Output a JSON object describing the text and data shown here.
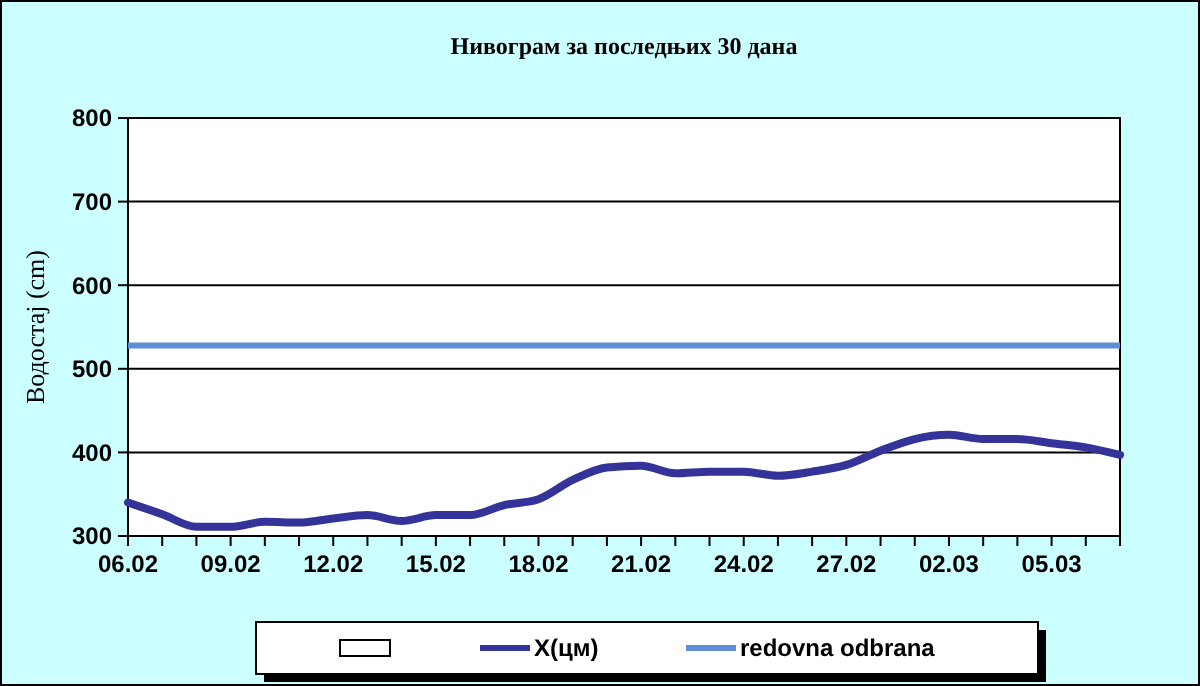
{
  "chart_data": {
    "type": "line",
    "title": "Нивограм за последњих 30 дана",
    "ylabel": "Водостај (cm)",
    "categories": [
      "06.02",
      null,
      null,
      "09.02",
      null,
      null,
      "12.02",
      null,
      null,
      "15.02",
      null,
      null,
      "18.02",
      null,
      null,
      "21.02",
      null,
      null,
      "24.02",
      null,
      null,
      "27.02",
      null,
      null,
      "02.03",
      null,
      null,
      "05.03",
      null,
      null
    ],
    "series": [
      {
        "name": "X(цм)",
        "color": "#333399",
        "values": [
          340,
          326,
          311,
          311,
          317,
          316,
          321,
          325,
          318,
          325,
          325,
          337,
          344,
          367,
          382,
          384,
          375,
          377,
          377,
          372,
          377,
          385,
          402,
          416,
          421,
          416,
          416,
          411,
          406,
          397
        ]
      }
    ],
    "ylim": [
      300,
      800
    ],
    "yticks": [
      300,
      400,
      500,
      600,
      700,
      800
    ],
    "grid": "y",
    "legend": "bottom",
    "marker": "none",
    "line_style": "solid",
    "ref_lines": [
      {
        "axis": "y",
        "value": 528,
        "label": "redovna odbrana",
        "color": "#5b8fd8"
      }
    ]
  }
}
